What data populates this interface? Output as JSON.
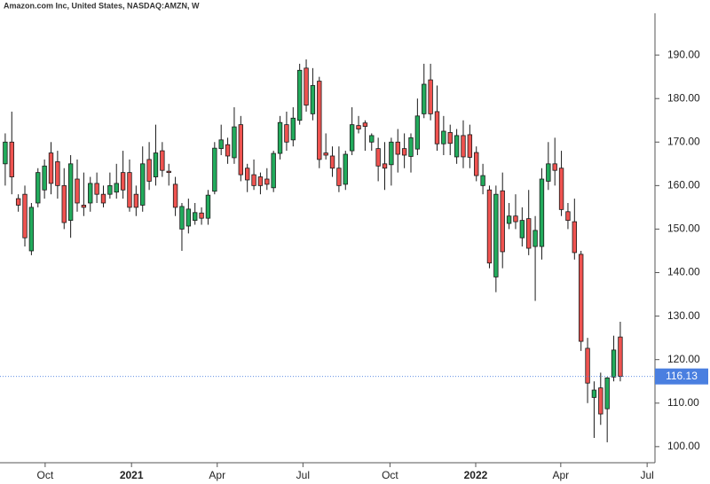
{
  "chart_data": {
    "type": "candlestick",
    "title": "Amazon.com Inc, United States, NASDAQ:AMZN, W",
    "x": [
      0,
      1,
      2,
      3,
      4,
      5,
      6,
      7,
      8,
      9,
      10,
      11,
      12,
      13,
      14,
      15,
      16,
      17,
      18,
      19,
      20,
      21,
      22,
      23,
      24,
      25,
      26,
      27,
      28,
      29,
      30,
      31,
      32,
      33,
      34,
      35,
      36,
      37,
      38,
      39,
      40,
      41,
      42,
      43,
      44,
      45,
      46,
      47,
      48,
      49,
      50,
      51,
      52,
      53,
      54,
      55,
      56,
      57,
      58,
      59,
      60,
      61,
      62,
      63,
      64,
      65,
      66,
      67,
      68,
      69,
      70,
      71,
      72,
      73,
      74,
      75,
      76,
      77,
      78,
      79,
      80,
      81,
      82,
      83,
      84,
      85,
      86,
      87,
      88,
      89,
      90,
      91,
      92,
      93,
      94
    ],
    "open": [
      165,
      170,
      157,
      158,
      145,
      156,
      159,
      167.5,
      165.5,
      160,
      152,
      161.5,
      155.5,
      156,
      160.5,
      158,
      158,
      158.5,
      163,
      163,
      158,
      155.5,
      166,
      162,
      168,
      163.3,
      160.3,
      150,
      150.7,
      152,
      153.7,
      152.5,
      158.7,
      168.5,
      169.4,
      166.4,
      174,
      164,
      162.5,
      162,
      161.5,
      159.5,
      167.4,
      174,
      170.5,
      175,
      187,
      176.5,
      184,
      167.5,
      166.8,
      164,
      160.3,
      168,
      173.8,
      174.4,
      170,
      168.5,
      165,
      164.8,
      170,
      168.5,
      166.7,
      168.4,
      176.5,
      184.3,
      177,
      169.6,
      172.2,
      166.6,
      171.5,
      171.7,
      167.6,
      160,
      159,
      139,
      158.8,
      151.3,
      153,
      148,
      152.4,
      146,
      146,
      161,
      165,
      164,
      154,
      151.7,
      144.2,
      122.6,
      111.3,
      113.5,
      108.7,
      116,
      125.2
    ],
    "high": [
      172,
      177,
      158,
      160,
      156,
      164,
      166,
      170,
      168,
      164,
      167,
      166,
      163,
      162,
      163,
      160,
      163,
      165,
      168,
      166,
      160,
      169,
      170,
      174,
      170,
      165,
      162,
      156,
      157,
      156,
      155,
      159,
      170,
      174,
      171,
      178,
      176,
      165,
      166,
      163,
      164,
      168,
      176,
      177,
      178,
      188,
      189,
      187,
      185,
      172,
      169,
      169,
      168,
      178,
      176,
      175,
      172,
      171,
      170,
      171,
      173,
      172,
      172,
      180,
      188,
      188,
      183,
      176,
      174,
      173,
      175,
      174,
      169,
      165,
      160,
      160,
      163,
      156,
      158,
      155,
      159,
      153,
      164,
      170,
      171,
      168,
      156,
      157,
      145,
      125,
      115,
      117,
      116,
      125.5,
      128.7
    ],
    "low": [
      160,
      158,
      154,
      146,
      144,
      155,
      157,
      158,
      157,
      150,
      148,
      154,
      153,
      154,
      156,
      155,
      157,
      157,
      157,
      154,
      153,
      154,
      159,
      160,
      162,
      160,
      153,
      145,
      149,
      151,
      151,
      151,
      158,
      167,
      165,
      165,
      161,
      158.5,
      159,
      158,
      159,
      158.5,
      166,
      168,
      169,
      174,
      177,
      175,
      164,
      166,
      162,
      158.5,
      159,
      167,
      172,
      168,
      168,
      161,
      159,
      160,
      163,
      164,
      163,
      167,
      175.5,
      175,
      168,
      167,
      167,
      165,
      164,
      164,
      161,
      158,
      141,
      135.5,
      141,
      150,
      150,
      146,
      144,
      133.5,
      143,
      159,
      160,
      153,
      150,
      143,
      122,
      110,
      102,
      105,
      101,
      115,
      115
    ],
    "close": [
      170,
      162,
      155.5,
      148,
      155,
      163,
      164.5,
      160.5,
      160,
      151.5,
      165,
      156,
      155,
      160.5,
      158,
      156,
      160,
      160.5,
      159,
      155,
      155,
      165,
      161,
      167.5,
      163.5,
      163,
      155,
      155.2,
      154.6,
      153.8,
      152.5,
      157.8,
      168.6,
      170.5,
      166.8,
      173.5,
      162.5,
      161.3,
      160,
      160,
      160.3,
      167.4,
      174.5,
      170,
      175.5,
      186.5,
      178.5,
      183,
      166,
      167,
      164,
      160,
      167.2,
      174,
      173,
      173.6,
      171.5,
      164.5,
      164,
      170,
      167.2,
      167,
      171,
      176,
      183.3,
      176.5,
      169.6,
      172.5,
      169.7,
      171.5,
      166.6,
      166.5,
      162.3,
      162.3,
      142.2,
      158,
      144.8,
      153,
      151.7,
      152,
      145.6,
      149.7,
      161.5,
      165,
      163.5,
      154.5,
      152,
      144.6,
      124.2,
      114.6,
      113,
      107.5,
      115.8,
      122.2,
      116.13
    ],
    "up_color": "#22ab5c",
    "down_color": "#ef5350",
    "xlim": [
      -0.8,
      99.3
    ],
    "xticks": [
      {
        "value": 6.1,
        "label": "Oct"
      },
      {
        "value": 19.3,
        "label": "2021"
      },
      {
        "value": 32.4,
        "label": "Apr"
      },
      {
        "value": 45.5,
        "label": "Jul"
      },
      {
        "value": 58.8,
        "label": "Oct"
      },
      {
        "value": 71.9,
        "label": "2022"
      },
      {
        "value": 84.9,
        "label": "Apr"
      },
      {
        "value": 98.1,
        "label": "Jul"
      }
    ],
    "ylim": [
      96.3,
      199.6
    ],
    "yticks": [
      {
        "value": 100,
        "label": "100.00"
      },
      {
        "value": 110,
        "label": "110.00"
      },
      {
        "value": 120,
        "label": "120.00"
      },
      {
        "value": 130,
        "label": "130.00"
      },
      {
        "value": 140,
        "label": "140.00"
      },
      {
        "value": 150,
        "label": "150.00"
      },
      {
        "value": 160,
        "label": "160.00"
      },
      {
        "value": 170,
        "label": "170.00"
      },
      {
        "value": 180,
        "label": "180.00"
      },
      {
        "value": 190,
        "label": "190.00"
      }
    ],
    "last_price": 116.13,
    "last_price_color": "#4a7fe0"
  }
}
